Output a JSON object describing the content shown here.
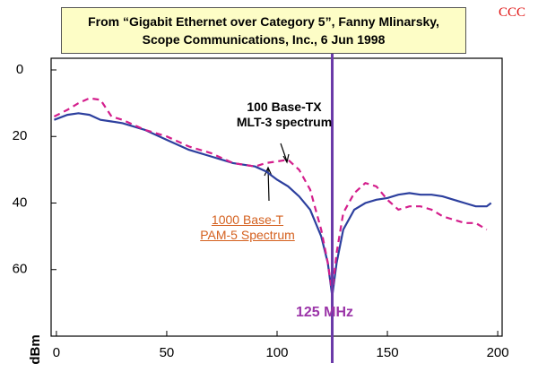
{
  "chart_data": {
    "type": "line",
    "title": "From “Gigabit Ethernet over Category 5”, Fanny Mlinarsky,",
    "subtitle": "Scope Communications, Inc., 6 Jun 1998",
    "watermark": "CCC",
    "y_label": "dBm",
    "xlim": [
      -2.4,
      202
    ],
    "ylim": [
      -3.5,
      80
    ],
    "y_reversed": true,
    "xticks": [
      0,
      50,
      100,
      150,
      200
    ],
    "yticks": [
      0,
      20,
      40,
      60
    ],
    "marker": {
      "value": 125,
      "label": "125 MHz",
      "color": "#6a3aa8"
    },
    "series": [
      {
        "name": "1000 Base-T PAM-5 Spectrum",
        "color": "#2c3f9e",
        "dash": false,
        "x": [
          -1,
          5,
          10,
          15,
          20,
          25,
          30,
          40,
          50,
          60,
          70,
          80,
          90,
          95,
          100,
          105,
          110,
          115,
          120,
          123,
          125,
          127,
          130,
          135,
          140,
          145,
          150,
          155,
          160,
          165,
          170,
          175,
          180,
          185,
          190,
          195,
          197
        ],
        "values": [
          15,
          13.5,
          13,
          13.5,
          15,
          15.5,
          16,
          18,
          21,
          24,
          26,
          28,
          29,
          30.5,
          33,
          35,
          38,
          42,
          50,
          58,
          68,
          58,
          48,
          42,
          40,
          39,
          38.5,
          37.5,
          37,
          37.5,
          37.5,
          38,
          39,
          40,
          41,
          41,
          40
        ]
      },
      {
        "name": "100 Base-TX MLT-3 spectrum",
        "color": "#d41e8c",
        "dash": true,
        "x": [
          -1,
          5,
          10,
          15,
          20,
          25,
          30,
          40,
          50,
          60,
          70,
          80,
          90,
          95,
          100,
          105,
          110,
          115,
          120,
          123,
          125,
          127,
          130,
          135,
          140,
          145,
          150,
          155,
          160,
          165,
          170,
          175,
          180,
          185,
          190,
          195
        ],
        "values": [
          14,
          12,
          10,
          8.5,
          9,
          14,
          15,
          18,
          20,
          23,
          25,
          28,
          29,
          28,
          27.5,
          27,
          30,
          36,
          48,
          58,
          67,
          55,
          43,
          37,
          34,
          35,
          39,
          42,
          41,
          41,
          42,
          44,
          45,
          46,
          46,
          48
        ]
      }
    ]
  }
}
